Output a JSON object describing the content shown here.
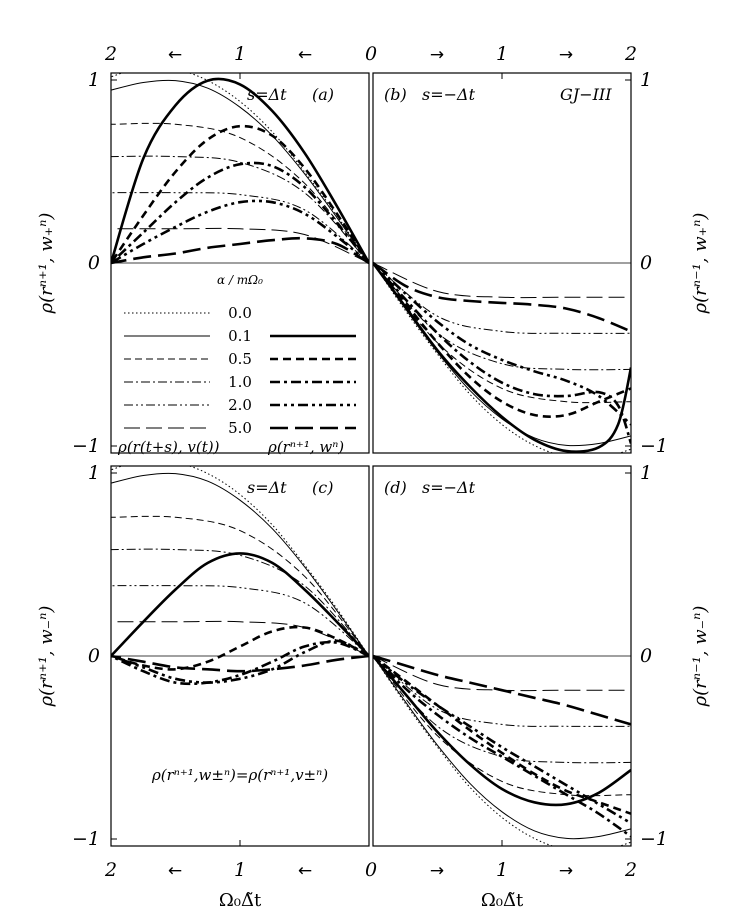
{
  "figure": {
    "top_axis_ticks": [
      "2",
      "←",
      "1",
      "←",
      "0",
      "→",
      "1",
      "→",
      "2"
    ],
    "bottom_axis_ticks": [
      "2",
      "←",
      "1",
      "←",
      "0",
      "→",
      "1",
      "→",
      "2"
    ],
    "bottom_xlabel_left": "Ω₀Δ̃t",
    "bottom_xlabel_right": "Ω₀Δ̃t",
    "ylabel_top_left": "ρ(rⁿ⁺¹, w₊ⁿ)",
    "ylabel_top_right": "ρ(rⁿ⁻¹, w₊ⁿ)",
    "ylabel_bottom_left": "ρ(rⁿ⁺¹, w₋ⁿ)",
    "ylabel_bottom_right": "ρ(rⁿ⁻¹, w₋ⁿ)",
    "y_ticks_left": [
      "1",
      "0",
      "−1",
      "1",
      "0",
      "−1"
    ],
    "y_ticks_right": [
      "1",
      "0",
      "−1",
      "1",
      "0",
      "−1"
    ]
  },
  "panels": {
    "a": {
      "label": "(a)",
      "s": "s=Δt"
    },
    "b": {
      "label": "(b)",
      "s": "s=−Δt",
      "scheme": "GJ−III"
    },
    "c": {
      "label": "(c)",
      "s": "s=Δt"
    },
    "d": {
      "label": "(d)",
      "s": "s=−Δt"
    }
  },
  "legend": {
    "header": "α / mΩ₀",
    "alphas": [
      "0.0",
      "0.1",
      "0.5",
      "1.0",
      "2.0",
      "5.0"
    ],
    "thin_label": "ρ(r(t+s), v(t))",
    "thick_label": "ρ(rⁿ⁺¹, wⁿ)"
  },
  "annotation_c": "ρ(rⁿ⁺¹,w±ⁿ)=ρ(rⁿ⁺¹,v±ⁿ)",
  "chart_data": [
    {
      "type": "line",
      "panel": "a",
      "x_range": [
        0,
        2
      ],
      "x_direction": "reversed",
      "ylim": [
        -1,
        1
      ],
      "series": [
        {
          "name": "0.0",
          "style": "thin-dotted",
          "x": [
            0,
            0.25,
            0.5,
            0.75,
            1,
            1.25,
            1.5,
            1.75,
            2
          ],
          "values": [
            0,
            0.25,
            0.48,
            0.69,
            0.85,
            0.96,
            1.02,
            1.03,
            0.98
          ]
        },
        {
          "name": "0.1",
          "style": "thin-solid",
          "x": [
            0,
            0.25,
            0.5,
            0.75,
            1,
            1.25,
            1.5,
            1.75,
            2
          ],
          "values": [
            0,
            0.24,
            0.47,
            0.67,
            0.82,
            0.92,
            0.96,
            0.95,
            0.91
          ]
        },
        {
          "name": "0.5",
          "style": "thin-dashed",
          "x": [
            0,
            0.5,
            1,
            1.5,
            2
          ],
          "values": [
            0,
            0.42,
            0.66,
            0.73,
            0.73
          ]
        },
        {
          "name": "1.0",
          "style": "thin-dashdot",
          "x": [
            0,
            0.5,
            1,
            1.5,
            2
          ],
          "values": [
            0,
            0.37,
            0.53,
            0.56,
            0.56
          ]
        },
        {
          "name": "2.0",
          "style": "thin-dashdotdot",
          "x": [
            0,
            0.5,
            1,
            1.5,
            2
          ],
          "values": [
            0,
            0.28,
            0.36,
            0.37,
            0.37
          ]
        },
        {
          "name": "5.0",
          "style": "thin-longdash",
          "x": [
            0,
            0.5,
            1,
            1.5,
            2
          ],
          "values": [
            0,
            0.15,
            0.18,
            0.18,
            0.18
          ]
        },
        {
          "name": "0.1",
          "style": "thick-solid",
          "x": [
            0,
            0.25,
            0.5,
            0.75,
            1,
            1.25,
            1.5,
            1.75,
            2
          ],
          "values": [
            0,
            0.3,
            0.58,
            0.8,
            0.94,
            0.96,
            0.83,
            0.55,
            0
          ]
        },
        {
          "name": "0.5",
          "style": "thick-dashed",
          "x": [
            0,
            0.25,
            0.5,
            0.75,
            1,
            1.25,
            1.5,
            1.75,
            2
          ],
          "values": [
            0,
            0.26,
            0.5,
            0.67,
            0.72,
            0.65,
            0.48,
            0.25,
            0
          ]
        },
        {
          "name": "1.0",
          "style": "thick-dashdot",
          "x": [
            0,
            0.25,
            0.5,
            0.75,
            1,
            1.25,
            1.5,
            1.75,
            2
          ],
          "values": [
            0,
            0.21,
            0.4,
            0.51,
            0.52,
            0.45,
            0.32,
            0.16,
            0
          ]
        },
        {
          "name": "2.0",
          "style": "thick-dashdotdot",
          "x": [
            0,
            0.25,
            0.5,
            0.75,
            1,
            1.25,
            1.5,
            1.75,
            2
          ],
          "values": [
            0,
            0.14,
            0.26,
            0.32,
            0.32,
            0.27,
            0.19,
            0.1,
            0
          ]
        },
        {
          "name": "5.0",
          "style": "thick-longdash",
          "x": [
            0,
            0.25,
            0.5,
            0.75,
            1,
            1.25,
            1.5,
            1.75,
            2
          ],
          "values": [
            0,
            0.1,
            0.13,
            0.12,
            0.1,
            0.08,
            0.05,
            0.03,
            0
          ]
        }
      ]
    },
    {
      "type": "line",
      "panel": "b",
      "x_range": [
        0,
        2
      ],
      "ylim": [
        -1,
        1
      ],
      "series": [
        {
          "name": "0.0",
          "style": "thin-dotted",
          "x": [
            0,
            0.25,
            0.5,
            0.75,
            1,
            1.25,
            1.5,
            1.75,
            2
          ],
          "values": [
            0,
            -0.25,
            -0.48,
            -0.69,
            -0.85,
            -0.96,
            -1.02,
            -1.03,
            -0.98
          ]
        },
        {
          "name": "0.1",
          "style": "thin-solid",
          "x": [
            0,
            0.25,
            0.5,
            0.75,
            1,
            1.25,
            1.5,
            1.75,
            2
          ],
          "values": [
            0,
            -0.24,
            -0.47,
            -0.67,
            -0.82,
            -0.92,
            -0.96,
            -0.95,
            -0.91
          ]
        },
        {
          "name": "0.5",
          "style": "thin-dashed",
          "x": [
            0,
            0.5,
            1,
            1.5,
            2
          ],
          "values": [
            0,
            -0.42,
            -0.66,
            -0.73,
            -0.73
          ]
        },
        {
          "name": "1.0",
          "style": "thin-dashdot",
          "x": [
            0,
            0.5,
            1,
            1.5,
            2
          ],
          "values": [
            0,
            -0.37,
            -0.53,
            -0.56,
            -0.56
          ]
        },
        {
          "name": "2.0",
          "style": "thin-dashdotdot",
          "x": [
            0,
            0.5,
            1,
            1.5,
            2
          ],
          "values": [
            0,
            -0.28,
            -0.36,
            -0.37,
            -0.37
          ]
        },
        {
          "name": "5.0",
          "style": "thin-longdash",
          "x": [
            0,
            0.5,
            1,
            1.5,
            2
          ],
          "values": [
            0,
            -0.15,
            -0.18,
            -0.18,
            -0.18
          ]
        },
        {
          "name": "0.1",
          "style": "thick-solid",
          "x": [
            0,
            0.25,
            0.5,
            0.75,
            1,
            1.25,
            1.5,
            1.75,
            1.9,
            2
          ],
          "values": [
            0,
            -0.23,
            -0.46,
            -0.65,
            -0.81,
            -0.93,
            -0.99,
            -0.97,
            -0.85,
            -0.55
          ]
        },
        {
          "name": "0.5",
          "style": "thick-dashed",
          "x": [
            0,
            0.25,
            0.5,
            0.75,
            1,
            1.25,
            1.5,
            1.75,
            2
          ],
          "values": [
            0,
            -0.21,
            -0.42,
            -0.6,
            -0.73,
            -0.8,
            -0.8,
            -0.73,
            -0.66
          ]
        },
        {
          "name": "1.0",
          "style": "thick-dashdot",
          "x": [
            0,
            0.25,
            0.5,
            0.75,
            1,
            1.25,
            1.5,
            1.75,
            1.9,
            2
          ],
          "values": [
            0,
            -0.19,
            -0.37,
            -0.52,
            -0.63,
            -0.69,
            -0.7,
            -0.68,
            -0.75,
            -0.95
          ]
        },
        {
          "name": "2.0",
          "style": "thick-dashdotdot",
          "x": [
            0,
            0.25,
            0.5,
            0.75,
            1,
            1.25,
            1.5,
            1.75,
            2
          ],
          "values": [
            0,
            -0.16,
            -0.31,
            -0.43,
            -0.51,
            -0.57,
            -0.62,
            -0.7,
            -0.85
          ]
        },
        {
          "name": "5.0",
          "style": "thick-longdash",
          "x": [
            0,
            0.25,
            0.5,
            0.75,
            1,
            1.25,
            1.5,
            1.75,
            2
          ],
          "values": [
            0,
            -0.12,
            -0.18,
            -0.2,
            -0.21,
            -0.22,
            -0.24,
            -0.29,
            -0.36
          ]
        }
      ]
    },
    {
      "type": "line",
      "panel": "c",
      "x_range": [
        0,
        2
      ],
      "x_direction": "reversed",
      "ylim": [
        -1,
        1
      ],
      "series": [
        {
          "name": "0.0",
          "style": "thin-dotted",
          "x": [
            0,
            0.25,
            0.5,
            0.75,
            1,
            1.25,
            1.5,
            1.75,
            2
          ],
          "values": [
            0,
            0.25,
            0.48,
            0.69,
            0.85,
            0.96,
            1.02,
            1.03,
            0.98
          ]
        },
        {
          "name": "0.1",
          "style": "thin-solid",
          "x": [
            0,
            0.25,
            0.5,
            0.75,
            1,
            1.25,
            1.5,
            1.75,
            2
          ],
          "values": [
            0,
            0.24,
            0.47,
            0.67,
            0.82,
            0.92,
            0.96,
            0.95,
            0.91
          ]
        },
        {
          "name": "0.5",
          "style": "thin-dashed",
          "x": [
            0,
            0.5,
            1,
            1.5,
            2
          ],
          "values": [
            0,
            0.42,
            0.66,
            0.73,
            0.73
          ]
        },
        {
          "name": "1.0",
          "style": "thin-dashdot",
          "x": [
            0,
            0.5,
            1,
            1.5,
            2
          ],
          "values": [
            0,
            0.37,
            0.53,
            0.56,
            0.56
          ]
        },
        {
          "name": "2.0",
          "style": "thin-dashdotdot",
          "x": [
            0,
            0.5,
            1,
            1.5,
            2
          ],
          "values": [
            0,
            0.28,
            0.36,
            0.37,
            0.37
          ]
        },
        {
          "name": "5.0",
          "style": "thin-longdash",
          "x": [
            0,
            0.5,
            1,
            1.5,
            2
          ],
          "values": [
            0,
            0.15,
            0.18,
            0.18,
            0.18
          ]
        },
        {
          "name": "0.1",
          "style": "thick-solid",
          "x": [
            0,
            0.25,
            0.5,
            0.75,
            1,
            1.25,
            1.5,
            1.75,
            2
          ],
          "values": [
            0,
            0.18,
            0.35,
            0.49,
            0.54,
            0.49,
            0.35,
            0.18,
            0
          ]
        },
        {
          "name": "0.5",
          "style": "thick-dashed",
          "x": [
            0,
            0.25,
            0.5,
            0.75,
            1,
            1.25,
            1.5,
            1.75,
            2
          ],
          "values": [
            0,
            0.09,
            0.15,
            0.13,
            0.05,
            -0.03,
            -0.07,
            -0.05,
            0
          ]
        },
        {
          "name": "1.0",
          "style": "thick-dashdot",
          "x": [
            0,
            0.25,
            0.5,
            0.75,
            1,
            1.25,
            1.5,
            1.75,
            2
          ],
          "values": [
            0,
            0.07,
            0.05,
            -0.03,
            -0.1,
            -0.14,
            -0.14,
            -0.08,
            0
          ]
        },
        {
          "name": "2.0",
          "style": "thick-dashdotdot",
          "x": [
            0,
            0.25,
            0.5,
            0.75,
            1,
            1.25,
            1.5,
            1.75,
            2
          ],
          "values": [
            0,
            0.08,
            0.02,
            -0.07,
            -0.12,
            -0.14,
            -0.12,
            -0.06,
            0
          ]
        },
        {
          "name": "5.0",
          "style": "thick-longdash",
          "x": [
            0,
            0.25,
            0.5,
            0.75,
            1,
            1.25,
            1.5,
            1.75,
            2
          ],
          "values": [
            0,
            -0.02,
            -0.05,
            -0.07,
            -0.08,
            -0.07,
            -0.06,
            -0.03,
            0
          ]
        }
      ]
    },
    {
      "type": "line",
      "panel": "d",
      "x_range": [
        0,
        2
      ],
      "ylim": [
        -1,
        1
      ],
      "series": [
        {
          "name": "0.0",
          "style": "thin-dotted",
          "x": [
            0,
            0.25,
            0.5,
            0.75,
            1,
            1.25,
            1.5,
            1.75,
            2
          ],
          "values": [
            0,
            -0.25,
            -0.48,
            -0.69,
            -0.85,
            -0.96,
            -1.02,
            -1.03,
            -0.98
          ]
        },
        {
          "name": "0.1",
          "style": "thin-solid",
          "x": [
            0,
            0.25,
            0.5,
            0.75,
            1,
            1.25,
            1.5,
            1.75,
            2
          ],
          "values": [
            0,
            -0.24,
            -0.47,
            -0.67,
            -0.82,
            -0.92,
            -0.96,
            -0.95,
            -0.91
          ]
        },
        {
          "name": "0.5",
          "style": "thin-dashed",
          "x": [
            0,
            0.5,
            1,
            1.5,
            2
          ],
          "values": [
            0,
            -0.42,
            -0.66,
            -0.73,
            -0.73
          ]
        },
        {
          "name": "1.0",
          "style": "thin-dashdot",
          "x": [
            0,
            0.5,
            1,
            1.5,
            2
          ],
          "values": [
            0,
            -0.37,
            -0.53,
            -0.56,
            -0.56
          ]
        },
        {
          "name": "2.0",
          "style": "thin-dashdotdot",
          "x": [
            0,
            0.5,
            1,
            1.5,
            2
          ],
          "values": [
            0,
            -0.28,
            -0.36,
            -0.37,
            -0.37
          ]
        },
        {
          "name": "5.0",
          "style": "thin-longdash",
          "x": [
            0,
            0.5,
            1,
            1.5,
            2
          ],
          "values": [
            0,
            -0.15,
            -0.18,
            -0.18,
            -0.18
          ]
        },
        {
          "name": "0.1",
          "style": "thick-solid",
          "x": [
            0,
            0.25,
            0.5,
            0.75,
            1,
            1.25,
            1.5,
            1.75,
            2
          ],
          "values": [
            0,
            -0.2,
            -0.4,
            -0.57,
            -0.7,
            -0.77,
            -0.78,
            -0.72,
            -0.6
          ]
        },
        {
          "name": "0.5",
          "style": "thick-dashed",
          "x": [
            0,
            0.25,
            0.5,
            0.75,
            1,
            1.25,
            1.5,
            1.75,
            2
          ],
          "values": [
            0,
            -0.13,
            -0.26,
            -0.39,
            -0.51,
            -0.62,
            -0.71,
            -0.77,
            -0.83
          ]
        },
        {
          "name": "1.0",
          "style": "thick-dashdot",
          "x": [
            0,
            0.25,
            0.5,
            0.75,
            1,
            1.25,
            1.5,
            1.75,
            2
          ],
          "values": [
            0,
            -0.17,
            -0.31,
            -0.43,
            -0.53,
            -0.63,
            -0.73,
            -0.83,
            -0.95
          ]
        },
        {
          "name": "2.0",
          "style": "thick-dashdotdot",
          "x": [
            0,
            0.25,
            0.5,
            0.75,
            1,
            1.25,
            1.5,
            1.75,
            2
          ],
          "values": [
            0,
            -0.14,
            -0.26,
            -0.37,
            -0.48,
            -0.58,
            -0.68,
            -0.78,
            -0.88
          ]
        },
        {
          "name": "5.0",
          "style": "thick-longdash",
          "x": [
            0,
            0.25,
            0.5,
            0.75,
            1,
            1.25,
            1.5,
            1.75,
            2
          ],
          "values": [
            0,
            -0.05,
            -0.1,
            -0.14,
            -0.18,
            -0.22,
            -0.26,
            -0.31,
            -0.36
          ]
        }
      ]
    }
  ]
}
